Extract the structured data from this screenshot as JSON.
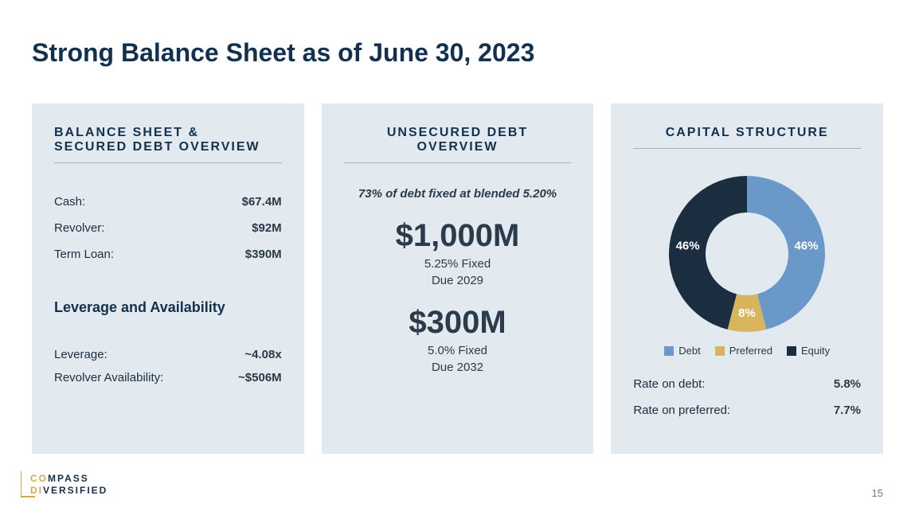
{
  "title": "Strong Balance Sheet as of June 30, 2023",
  "page_number": "15",
  "logo": {
    "line1": "COMPASS",
    "line2": "DIVERSIFIED",
    "highlight_chars": 2,
    "accent_color": "#d4a94a",
    "text_color": "#12314f"
  },
  "panel_bg": "#e2eaf0",
  "panel1": {
    "title": "BALANCE SHEET &\nSECURED DEBT OVERVIEW",
    "rows": [
      {
        "label": "Cash:",
        "value": "$67.4M"
      },
      {
        "label": "Revolver:",
        "value": "$92M"
      },
      {
        "label": "Term Loan:",
        "value": "$390M"
      }
    ],
    "sub_title": "Leverage and Availability",
    "sub_rows": [
      {
        "label": "Leverage:",
        "value": "~4.08x"
      },
      {
        "label": "Revolver Availability:",
        "value": "~$506M"
      }
    ]
  },
  "panel2": {
    "title": "UNSECURED DEBT OVERVIEW",
    "fixed_note": "73% of debt fixed at blended 5.20%",
    "tranches": [
      {
        "amount": "$1,000M",
        "rate": "5.25% Fixed",
        "due": "Due 2029"
      },
      {
        "amount": "$300M",
        "rate": "5.0% Fixed",
        "due": "Due 2032"
      }
    ]
  },
  "panel3": {
    "title": "CAPITAL STRUCTURE",
    "donut": {
      "slices": [
        {
          "name": "Debt",
          "pct": 46,
          "color": "#6a99c9",
          "label": "46%"
        },
        {
          "name": "Preferred",
          "pct": 8,
          "color": "#d8b45c",
          "label": "8%"
        },
        {
          "name": "Equity",
          "pct": 46,
          "color": "#1a2e40",
          "label": "46%"
        }
      ],
      "inner_radius": 52,
      "outer_radius": 98,
      "start_angle_deg": -90,
      "label_color": "#ffffff",
      "label_fontsize": 15
    },
    "legend": [
      {
        "name": "Debt",
        "color": "#6a99c9"
      },
      {
        "name": "Preferred",
        "color": "#d8b45c"
      },
      {
        "name": "Equity",
        "color": "#1a2e40"
      }
    ],
    "rates": [
      {
        "label": "Rate on debt:",
        "value": "5.8%"
      },
      {
        "label": "Rate on preferred:",
        "value": "7.7%"
      }
    ]
  }
}
